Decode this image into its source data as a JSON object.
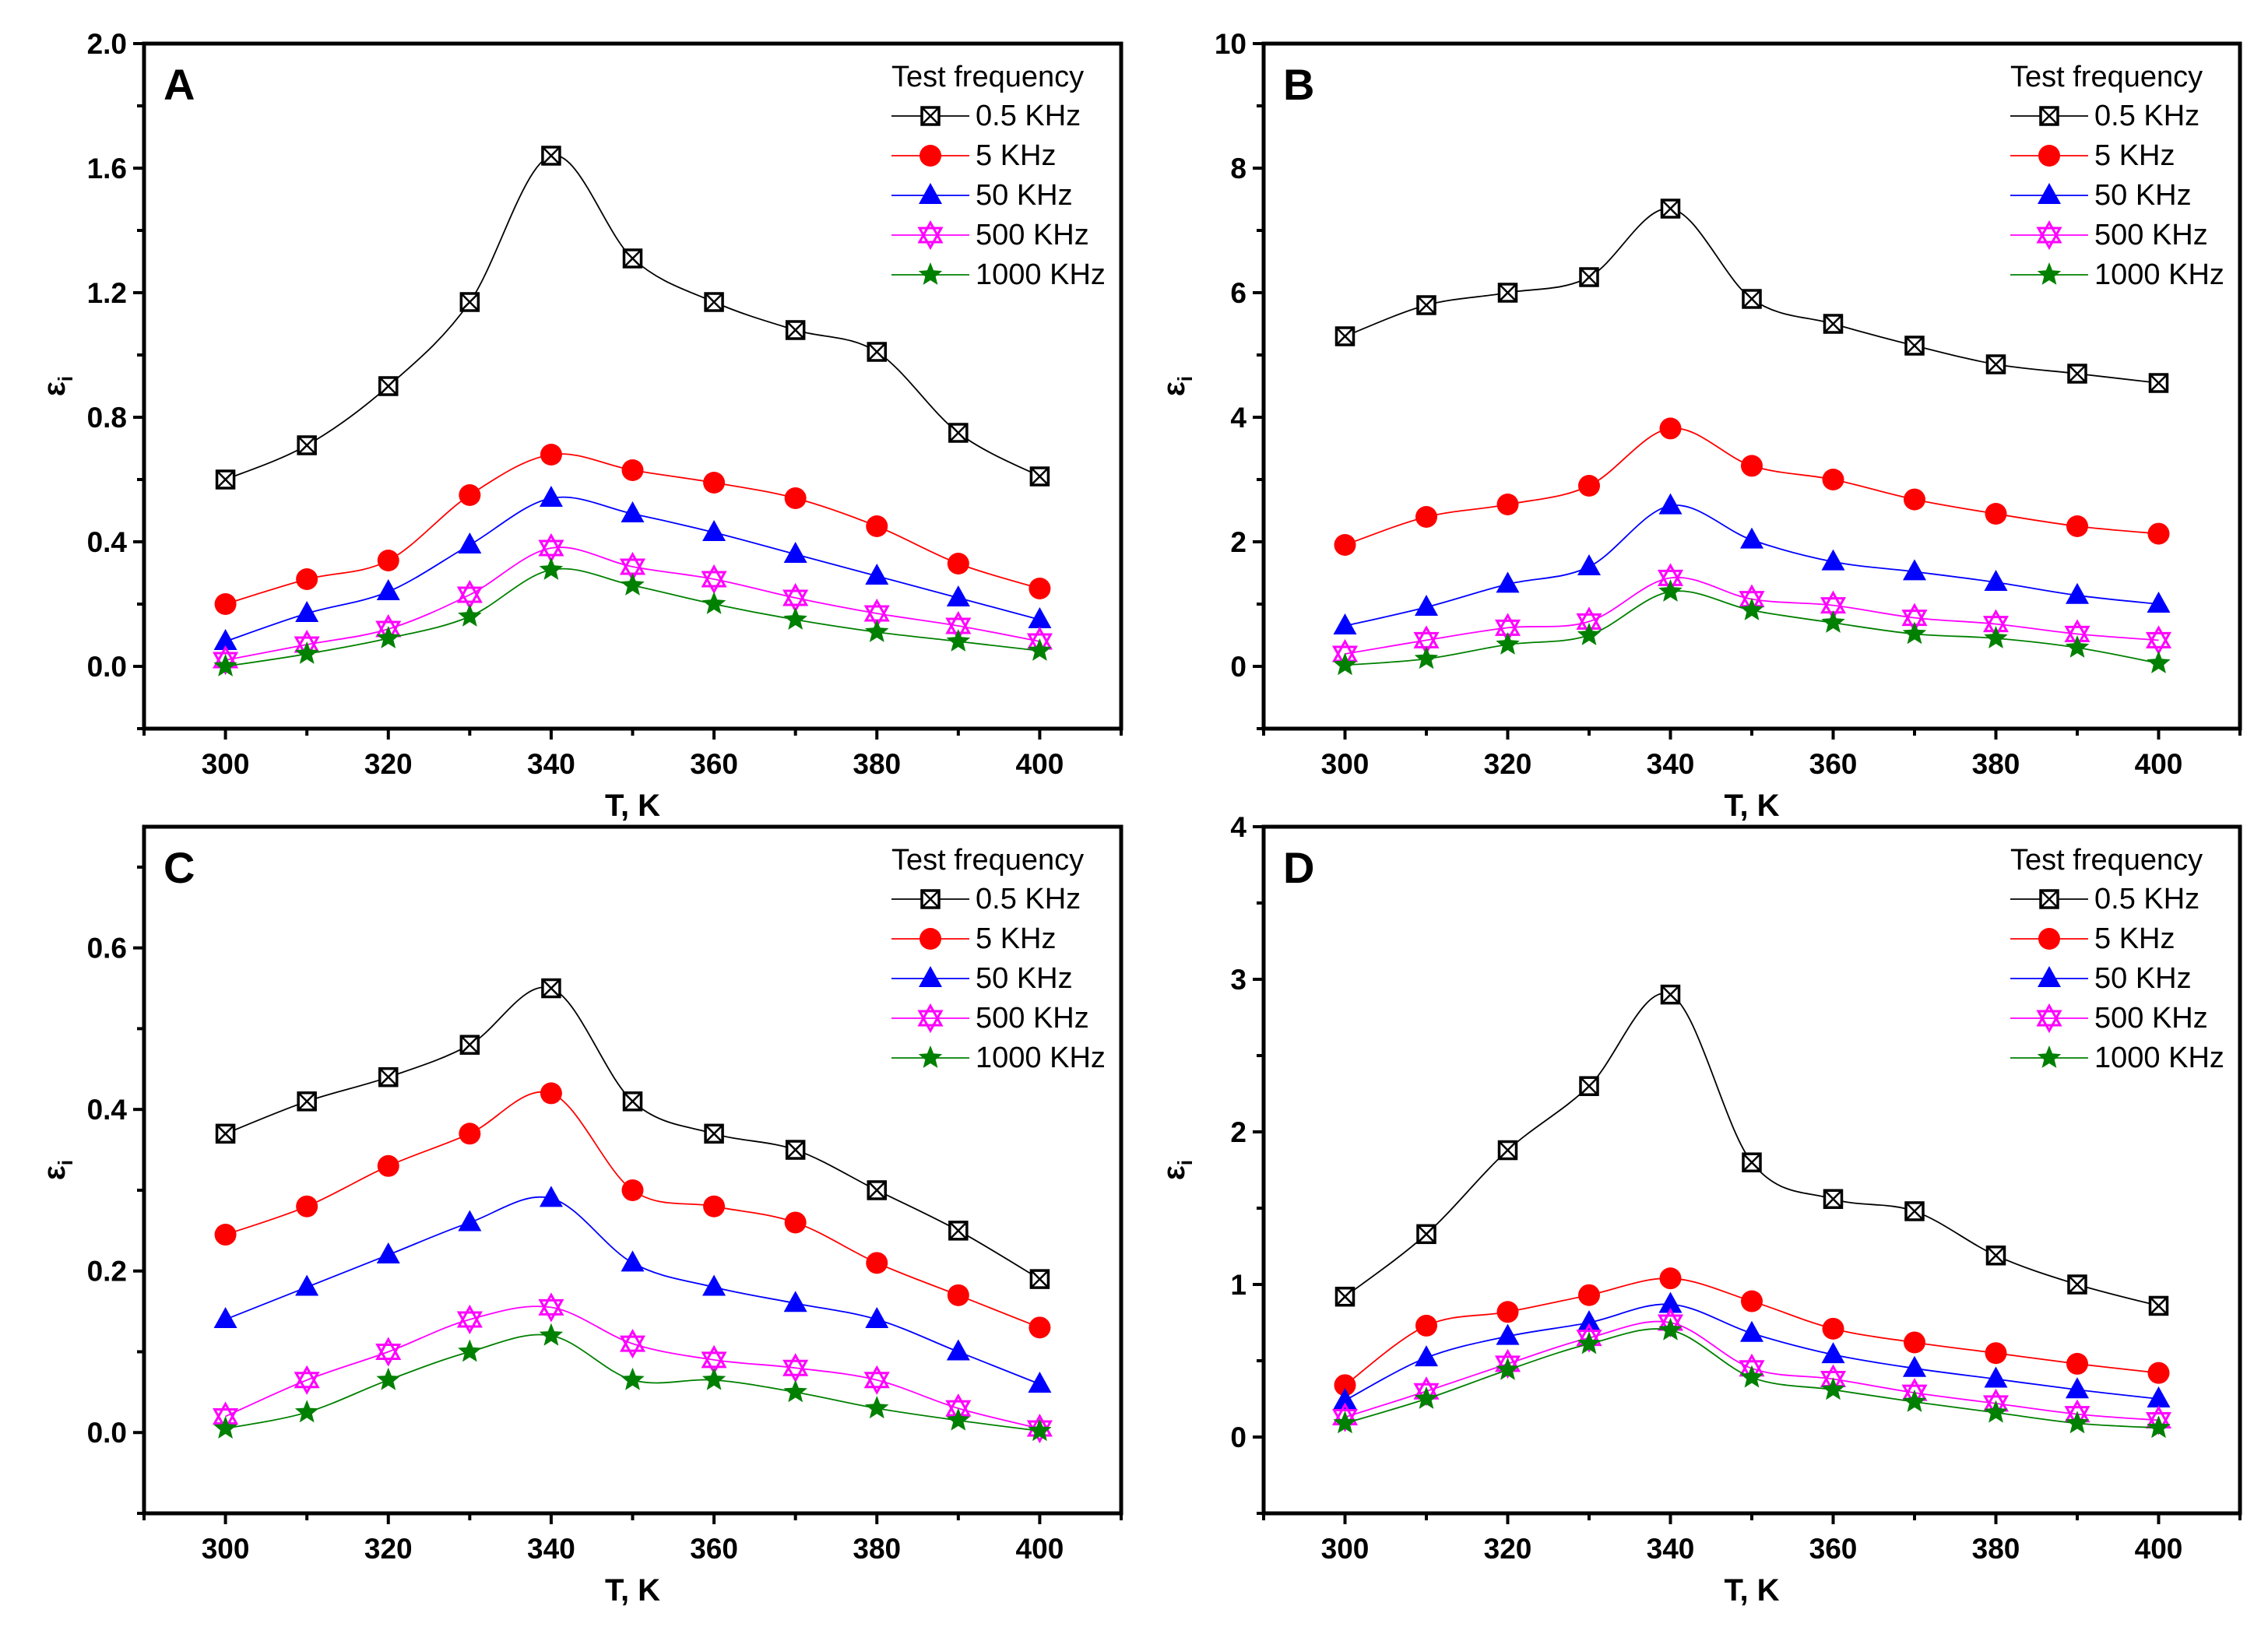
{
  "legend_title": "Test frequency",
  "series_styles": [
    {
      "name": "0.5 KHz",
      "color": "#000000",
      "marker": "square-x"
    },
    {
      "name": "5 KHz",
      "color": "#ff0000",
      "marker": "circle"
    },
    {
      "name": "50 KHz",
      "color": "#0000ff",
      "marker": "triangle"
    },
    {
      "name": "500 KHz",
      "color": "#ff00ff",
      "marker": "open-hexagram"
    },
    {
      "name": "1000 KHz",
      "color": "#008000",
      "marker": "star"
    }
  ],
  "chart_data": [
    {
      "panel": "A",
      "type": "line",
      "xlabel": "T, K",
      "ylabel": "εi",
      "xlim": [
        290,
        410
      ],
      "ylim": [
        -0.2,
        2.0
      ],
      "xticks": [
        300,
        320,
        340,
        360,
        380,
        400
      ],
      "yticks": [
        "0.0",
        "0.4",
        "0.8",
        "1.2",
        "1.6",
        "2.0"
      ],
      "ytick_step": 0.4,
      "legend": "top-right",
      "x": [
        300,
        310,
        320,
        330,
        340,
        350,
        360,
        370,
        380,
        390,
        400
      ],
      "series": [
        {
          "name": "0.5 KHz",
          "values": [
            0.6,
            0.71,
            0.9,
            1.17,
            1.64,
            1.31,
            1.17,
            1.08,
            1.01,
            0.75,
            0.61
          ]
        },
        {
          "name": "5 KHz",
          "values": [
            0.2,
            0.28,
            0.34,
            0.55,
            0.68,
            0.63,
            0.59,
            0.54,
            0.45,
            0.33,
            0.25
          ]
        },
        {
          "name": "50 KHz",
          "values": [
            0.08,
            0.17,
            0.24,
            0.39,
            0.54,
            0.49,
            0.43,
            0.36,
            0.29,
            0.22,
            0.15
          ]
        },
        {
          "name": "500 KHz",
          "values": [
            0.02,
            0.07,
            0.12,
            0.23,
            0.38,
            0.32,
            0.28,
            0.22,
            0.17,
            0.13,
            0.08
          ]
        },
        {
          "name": "1000 KHz",
          "values": [
            0.0,
            0.04,
            0.09,
            0.16,
            0.31,
            0.26,
            0.2,
            0.15,
            0.11,
            0.08,
            0.05
          ]
        }
      ]
    },
    {
      "panel": "B",
      "type": "line",
      "xlabel": "T, K",
      "ylabel": "εi",
      "xlim": [
        290,
        410
      ],
      "ylim": [
        -1,
        10
      ],
      "xticks": [
        300,
        320,
        340,
        360,
        380,
        400
      ],
      "yticks": [
        "0",
        "2",
        "4",
        "6",
        "8",
        "10"
      ],
      "ytick_step": 2,
      "legend": "top-right",
      "x": [
        300,
        310,
        320,
        330,
        340,
        350,
        360,
        370,
        380,
        390,
        400
      ],
      "series": [
        {
          "name": "0.5 KHz",
          "values": [
            5.3,
            5.8,
            6.0,
            6.25,
            7.35,
            5.9,
            5.5,
            5.15,
            4.85,
            4.7,
            4.55
          ]
        },
        {
          "name": "5 KHz",
          "values": [
            1.95,
            2.4,
            2.6,
            2.9,
            3.82,
            3.22,
            3.0,
            2.68,
            2.45,
            2.25,
            2.13
          ]
        },
        {
          "name": "50 KHz",
          "values": [
            0.65,
            0.95,
            1.32,
            1.6,
            2.58,
            2.03,
            1.68,
            1.52,
            1.35,
            1.14,
            1.0
          ]
        },
        {
          "name": "500 KHz",
          "values": [
            0.2,
            0.42,
            0.62,
            0.72,
            1.42,
            1.08,
            0.98,
            0.78,
            0.68,
            0.52,
            0.42
          ]
        },
        {
          "name": "1000 KHz",
          "values": [
            0.02,
            0.12,
            0.35,
            0.5,
            1.2,
            0.9,
            0.7,
            0.52,
            0.45,
            0.3,
            0.05
          ]
        }
      ]
    },
    {
      "panel": "C",
      "type": "line",
      "xlabel": "T, K",
      "ylabel": "εi",
      "xlim": [
        290,
        410
      ],
      "ylim": [
        -0.1,
        0.75
      ],
      "xticks": [
        300,
        320,
        340,
        360,
        380,
        400
      ],
      "yticks": [
        "0.0",
        "0.2",
        "0.4",
        "0.6"
      ],
      "ytick_step": 0.2,
      "legend": "top-right",
      "x": [
        300,
        310,
        320,
        330,
        340,
        350,
        360,
        370,
        380,
        390,
        400
      ],
      "series": [
        {
          "name": "0.5 KHz",
          "values": [
            0.37,
            0.41,
            0.44,
            0.48,
            0.55,
            0.41,
            0.37,
            0.35,
            0.3,
            0.25,
            0.19
          ]
        },
        {
          "name": "5 KHz",
          "values": [
            0.245,
            0.28,
            0.33,
            0.37,
            0.42,
            0.3,
            0.28,
            0.26,
            0.21,
            0.17,
            0.13
          ]
        },
        {
          "name": "50 KHz",
          "values": [
            0.14,
            0.18,
            0.22,
            0.26,
            0.29,
            0.21,
            0.18,
            0.16,
            0.14,
            0.1,
            0.06
          ]
        },
        {
          "name": "500 KHz",
          "values": [
            0.02,
            0.065,
            0.1,
            0.14,
            0.155,
            0.11,
            0.09,
            0.08,
            0.065,
            0.03,
            0.005
          ]
        },
        {
          "name": "1000 KHz",
          "values": [
            0.005,
            0.025,
            0.065,
            0.1,
            0.12,
            0.065,
            0.065,
            0.05,
            0.03,
            0.015,
            0.002
          ]
        }
      ]
    },
    {
      "panel": "D",
      "type": "line",
      "xlabel": "T, K",
      "ylabel": "εi",
      "xlim": [
        290,
        410
      ],
      "ylim": [
        -0.5,
        4
      ],
      "xticks": [
        300,
        320,
        340,
        360,
        380,
        400
      ],
      "yticks": [
        "0",
        "1",
        "2",
        "3",
        "4"
      ],
      "ytick_step": 1,
      "legend": "top-right",
      "x": [
        300,
        310,
        320,
        330,
        340,
        350,
        360,
        370,
        380,
        390,
        400
      ],
      "series": [
        {
          "name": "0.5 KHz",
          "values": [
            0.92,
            1.33,
            1.88,
            2.3,
            2.9,
            1.8,
            1.56,
            1.48,
            1.19,
            1.0,
            0.86
          ]
        },
        {
          "name": "5 KHz",
          "values": [
            0.34,
            0.73,
            0.82,
            0.93,
            1.04,
            0.89,
            0.71,
            0.62,
            0.55,
            0.48,
            0.42
          ]
        },
        {
          "name": "50 KHz",
          "values": [
            0.24,
            0.52,
            0.66,
            0.75,
            0.87,
            0.68,
            0.54,
            0.45,
            0.38,
            0.31,
            0.25
          ]
        },
        {
          "name": "500 KHz",
          "values": [
            0.13,
            0.3,
            0.48,
            0.65,
            0.75,
            0.45,
            0.38,
            0.29,
            0.22,
            0.15,
            0.11
          ]
        },
        {
          "name": "1000 KHz",
          "values": [
            0.09,
            0.25,
            0.44,
            0.61,
            0.7,
            0.39,
            0.31,
            0.23,
            0.16,
            0.09,
            0.06
          ]
        }
      ]
    }
  ]
}
